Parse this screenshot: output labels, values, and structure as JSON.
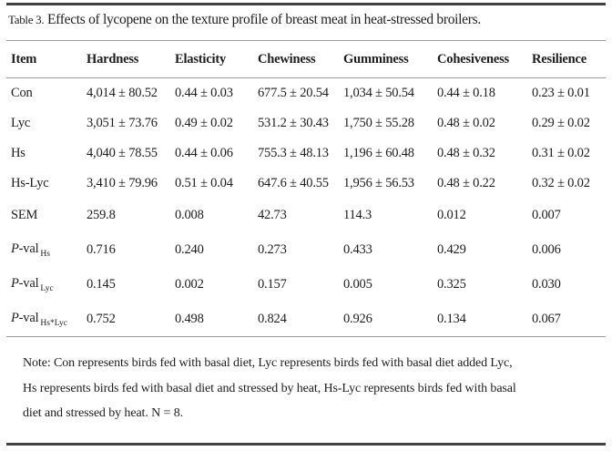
{
  "colors": {
    "background": "#ffffff",
    "text": "#1d1d20",
    "rule_dark": "#414141",
    "rule_light": "#9a9a9a"
  },
  "table": {
    "caption": {
      "prefix": "Table 3.",
      "title": "Effects of lycopene on the texture profile of breast meat in heat-stressed broilers."
    },
    "columns": [
      "Item",
      "Hardness",
      "Elasticity",
      "Chewiness",
      "Gumminess",
      "Cohesiveness",
      "Resilience"
    ],
    "rows": [
      {
        "label": "Con",
        "values": [
          "4,014 ± 80.52",
          "0.44 ± 0.03",
          "677.5 ± 20.54",
          "1,034 ± 50.54",
          "0.44 ± 0.18",
          "0.23 ± 0.01"
        ]
      },
      {
        "label": "Lyc",
        "values": [
          "3,051 ± 73.76",
          "0.49 ± 0.02",
          "531.2 ± 30.43",
          "1,750 ± 55.28",
          "0.48 ± 0.02",
          "0.29 ± 0.02"
        ]
      },
      {
        "label": "Hs",
        "values": [
          "4,040 ± 78.55",
          "0.44 ± 0.06",
          "755.3 ± 48.13",
          "1,196 ± 60.48",
          "0.48 ± 0.32",
          "0.31 ± 0.02"
        ]
      },
      {
        "label": "Hs-Lyc",
        "values": [
          "3,410 ± 79.96",
          "0.51 ± 0.04",
          "647.6 ± 40.55",
          "1,956 ± 56.53",
          "0.48 ± 0.22",
          "0.32 ± 0.02"
        ]
      },
      {
        "label": "SEM",
        "values": [
          "259.8",
          "0.008",
          "42.73",
          "114.3",
          "0.012",
          "0.007"
        ]
      },
      {
        "label_prefix_italic": "P",
        "label_main": "-val",
        "label_sub": "Hs",
        "values": [
          "0.716",
          "0.240",
          "0.273",
          "0.433",
          "0.429",
          "0.006"
        ]
      },
      {
        "label_prefix_italic": "P",
        "label_main": "-val",
        "label_sub": "Lyc",
        "values": [
          "0.145",
          "0.002",
          "0.157",
          "0.005",
          "0.325",
          "0.030"
        ]
      },
      {
        "label_prefix_italic": "P",
        "label_main": "-val",
        "label_sub": "Hs*Lyc",
        "values": [
          "0.752",
          "0.498",
          "0.824",
          "0.926",
          "0.134",
          "0.067"
        ]
      }
    ]
  },
  "note": {
    "lines": [
      "Note: Con represents birds fed with basal diet, Lyc represents birds fed with basal diet added Lyc,",
      "Hs represents birds fed with basal diet and stressed by heat, Hs-Lyc represents birds fed with basal",
      "diet and stressed by heat. N = 8."
    ]
  }
}
